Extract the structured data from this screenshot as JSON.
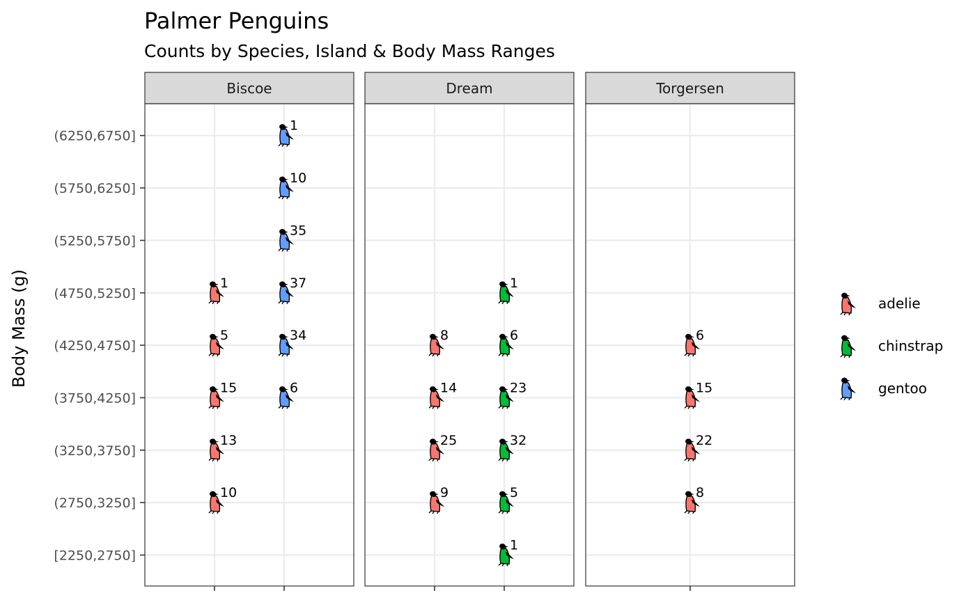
{
  "chart_data": {
    "type": "scatter",
    "title": "Palmer Penguins",
    "subtitle": "Counts by Species, Island & Body Mass Ranges",
    "xlabel": "",
    "ylabel": "Body Mass (g)",
    "facets": [
      "Biscoe",
      "Dream",
      "Torgersen"
    ],
    "categories": [
      "[2250,2750]",
      "(2750,3250]",
      "(3250,3750]",
      "(3750,4250]",
      "(4250,4750]",
      "(4750,5250]",
      "(5250,5750]",
      "(5750,6250]",
      "(6250,6750]"
    ],
    "facet_species": {
      "Biscoe": [
        "adelie",
        "gentoo"
      ],
      "Dream": [
        "adelie",
        "chinstrap"
      ],
      "Torgersen": [
        "adelie"
      ]
    },
    "species_colors": {
      "adelie": "#F8766D",
      "chinstrap": "#00BA38",
      "gentoo": "#619CFF"
    },
    "legend": {
      "position": "right",
      "entries": [
        "adelie",
        "chinstrap",
        "gentoo"
      ]
    },
    "grid": true,
    "points": [
      {
        "island": "Biscoe",
        "species": "adelie",
        "range": "(2750,3250]",
        "count": 10
      },
      {
        "island": "Biscoe",
        "species": "adelie",
        "range": "(3250,3750]",
        "count": 13
      },
      {
        "island": "Biscoe",
        "species": "adelie",
        "range": "(3750,4250]",
        "count": 15
      },
      {
        "island": "Biscoe",
        "species": "adelie",
        "range": "(4250,4750]",
        "count": 5
      },
      {
        "island": "Biscoe",
        "species": "adelie",
        "range": "(4750,5250]",
        "count": 1
      },
      {
        "island": "Biscoe",
        "species": "gentoo",
        "range": "(3750,4250]",
        "count": 6
      },
      {
        "island": "Biscoe",
        "species": "gentoo",
        "range": "(4250,4750]",
        "count": 34
      },
      {
        "island": "Biscoe",
        "species": "gentoo",
        "range": "(4750,5250]",
        "count": 37
      },
      {
        "island": "Biscoe",
        "species": "gentoo",
        "range": "(5250,5750]",
        "count": 35
      },
      {
        "island": "Biscoe",
        "species": "gentoo",
        "range": "(5750,6250]",
        "count": 10
      },
      {
        "island": "Biscoe",
        "species": "gentoo",
        "range": "(6250,6750]",
        "count": 1
      },
      {
        "island": "Dream",
        "species": "adelie",
        "range": "(2750,3250]",
        "count": 9
      },
      {
        "island": "Dream",
        "species": "adelie",
        "range": "(3250,3750]",
        "count": 25
      },
      {
        "island": "Dream",
        "species": "adelie",
        "range": "(3750,4250]",
        "count": 14
      },
      {
        "island": "Dream",
        "species": "adelie",
        "range": "(4250,4750]",
        "count": 8
      },
      {
        "island": "Dream",
        "species": "chinstrap",
        "range": "[2250,2750]",
        "count": 1
      },
      {
        "island": "Dream",
        "species": "chinstrap",
        "range": "(2750,3250]",
        "count": 5
      },
      {
        "island": "Dream",
        "species": "chinstrap",
        "range": "(3250,3750]",
        "count": 32
      },
      {
        "island": "Dream",
        "species": "chinstrap",
        "range": "(3750,4250]",
        "count": 23
      },
      {
        "island": "Dream",
        "species": "chinstrap",
        "range": "(4250,4750]",
        "count": 6
      },
      {
        "island": "Dream",
        "species": "chinstrap",
        "range": "(4750,5250]",
        "count": 1
      },
      {
        "island": "Torgersen",
        "species": "adelie",
        "range": "(2750,3250]",
        "count": 8
      },
      {
        "island": "Torgersen",
        "species": "adelie",
        "range": "(3250,3750]",
        "count": 22
      },
      {
        "island": "Torgersen",
        "species": "adelie",
        "range": "(3750,4250]",
        "count": 15
      },
      {
        "island": "Torgersen",
        "species": "adelie",
        "range": "(4250,4750]",
        "count": 6
      }
    ]
  }
}
